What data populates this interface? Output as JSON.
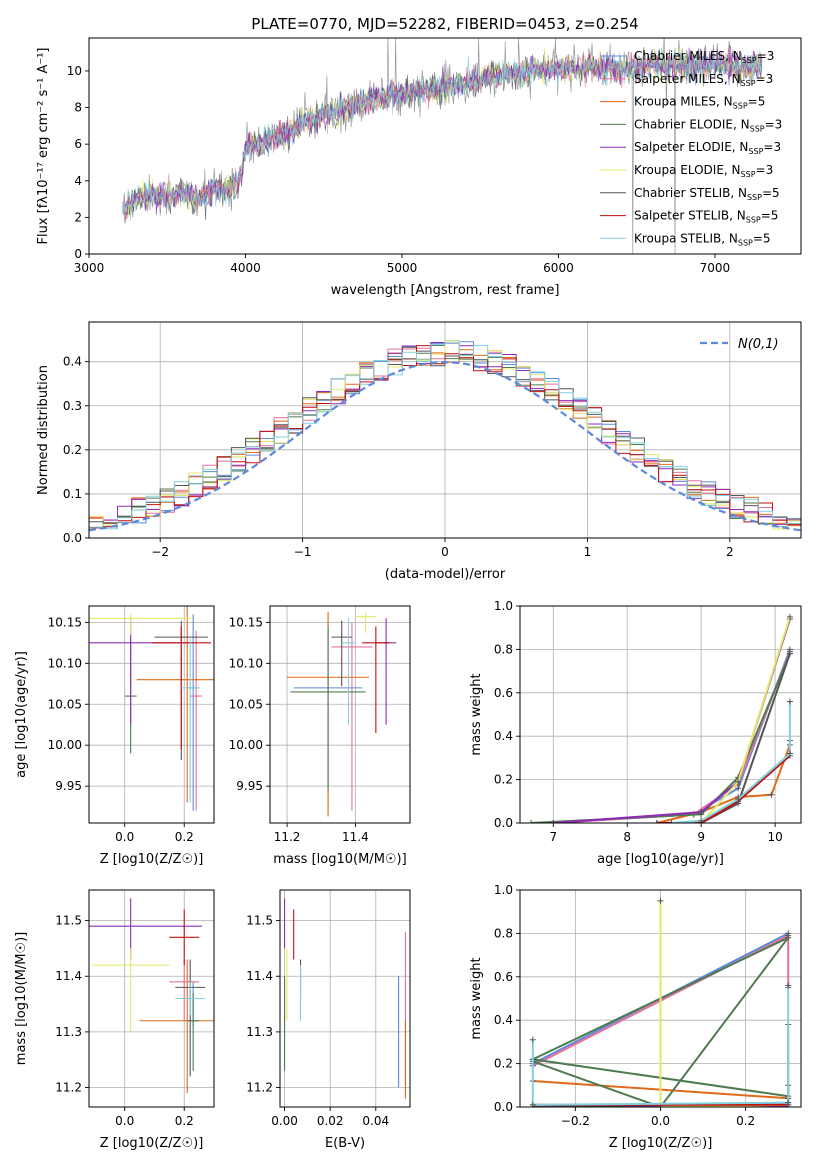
{
  "figure": {
    "title": "PLATE=0770, MJD=52282, FIBERID=0453, z=0.254"
  },
  "colors": {
    "series": [
      "#5b8ad9",
      "#e8709c",
      "#e06a1a",
      "#507a50",
      "#8e2bb8",
      "#e4e866",
      "#555555",
      "#c01010",
      "#80d0e0"
    ],
    "gauss": "#5b8ad9",
    "grid": "#b0b0b0",
    "spectrum_grey": "#808080"
  },
  "legend_series": [
    {
      "name": "Chabrier MILES",
      "n": "3"
    },
    {
      "name": "Salpeter MILES",
      "n": "3"
    },
    {
      "name": "Kroupa MILES",
      "n": "5"
    },
    {
      "name": "Chabrier ELODIE",
      "n": "3"
    },
    {
      "name": "Salpeter ELODIE",
      "n": "3"
    },
    {
      "name": "Kroupa ELODIE",
      "n": "3"
    },
    {
      "name": "Chabrier STELIB",
      "n": "5"
    },
    {
      "name": "Salpeter STELIB",
      "n": "5"
    },
    {
      "name": "Kroupa STELIB",
      "n": "5"
    }
  ],
  "chart_data": [
    {
      "type": "line",
      "panel": "spectrum",
      "xlabel": "wavelength [Angstrom, rest frame]",
      "ylabel": "Flux [f_λ 10^-17 erg cm^-2 s^-1 A^-1]",
      "xlim": [
        3000,
        7550
      ],
      "ylim": [
        0,
        11.8
      ],
      "xticks": [
        3000,
        4000,
        5000,
        6000,
        7000
      ],
      "yticks": [
        0,
        2,
        4,
        6,
        8,
        10
      ],
      "grid": false,
      "legend": "right",
      "continuum": {
        "x": [
          3215,
          3300,
          3400,
          3500,
          3600,
          3700,
          3800,
          3900,
          3960,
          4000,
          4100,
          4200,
          4300,
          4400,
          4500,
          4600,
          4700,
          4800,
          4900,
          5000,
          5100,
          5200,
          5400,
          5600,
          5800,
          6000,
          6200,
          6400,
          6600,
          6800,
          7000,
          7200,
          7300
        ],
        "y": [
          2.5,
          3.0,
          3.3,
          3.1,
          3.4,
          3.0,
          3.4,
          3.6,
          4.0,
          5.8,
          6.0,
          6.4,
          6.8,
          7.3,
          7.6,
          7.9,
          8.1,
          8.4,
          8.6,
          8.8,
          8.9,
          9.0,
          9.3,
          9.7,
          10.0,
          10.1,
          10.2,
          10.1,
          10.4,
          10.2,
          10.4,
          10.2,
          10.3
        ]
      },
      "legend_layout": "n_ssp"
    },
    {
      "type": "step-histogram",
      "panel": "residuals",
      "xlabel": "(data-model)/error",
      "ylabel": "Normed distribution",
      "xlim": [
        -2.5,
        2.5
      ],
      "ylim": [
        0,
        0.49
      ],
      "xticks": [
        -2,
        -1,
        0,
        1,
        2
      ],
      "yticks": [
        0,
        0.1,
        0.2,
        0.3,
        0.4
      ],
      "grid": true,
      "legend": "top-right",
      "gauss_label": "N(0,1)",
      "bin_width": 0.1,
      "bins_start": -2.5
    },
    {
      "type": "errorbar",
      "panel": "age-vs-Z",
      "xlabel": "Z [log10(Z/Z☉)]",
      "ylabel": "age [log10(age/yr)]",
      "xlim": [
        -0.12,
        0.3
      ],
      "ylim": [
        9.905,
        10.17
      ],
      "xticks": [
        0.0,
        0.2
      ],
      "yticks": [
        9.95,
        10.0,
        10.05,
        10.1,
        10.15
      ],
      "grid": true,
      "points": [
        {
          "x": 0.23,
          "y": 10.07,
          "xerr": 0.02,
          "yerr": [
            0.15,
            0.09
          ]
        },
        {
          "x": 0.24,
          "y": 10.06,
          "xerr": 0.02,
          "yerr": [
            0.14,
            0.08
          ]
        },
        {
          "x": 0.21,
          "y": 10.08,
          "xerr": 0.17,
          "yerr": [
            0.15,
            0.1
          ]
        },
        {
          "x": 0.02,
          "y": 10.06,
          "xerr": 0.02,
          "yerr": [
            0.07,
            0.07
          ]
        },
        {
          "x": 0.02,
          "y": 10.125,
          "xerr": 0.2,
          "yerr": [
            0.1,
            0.03
          ]
        },
        {
          "x": 0.02,
          "y": 10.155,
          "xerr": 0.2,
          "yerr": [
            0.02,
            0.005
          ]
        },
        {
          "x": 0.19,
          "y": 10.132,
          "xerr": 0.09,
          "yerr": [
            0.15,
            0.02
          ]
        },
        {
          "x": 0.19,
          "y": 10.125,
          "xerr": 0.1,
          "yerr": [
            0.13,
            0.02
          ]
        },
        {
          "x": 0.22,
          "y": 10.07,
          "xerr": 0.03,
          "yerr": [
            0.14,
            0.06
          ]
        }
      ]
    },
    {
      "type": "errorbar",
      "panel": "age-vs-mass",
      "xlabel": "mass [log10(M/M☉)]",
      "xlim": [
        11.15,
        11.56
      ],
      "ylim": [
        9.905,
        10.17
      ],
      "xticks": [
        11.2,
        11.4
      ],
      "yticks": [
        9.95,
        10.0,
        10.05,
        10.1,
        10.15
      ],
      "grid": true,
      "points": [
        {
          "x": 11.32,
          "y": 10.07,
          "xerr": 0.1,
          "yerr": [
            0.15,
            0.09
          ]
        },
        {
          "x": 11.39,
          "y": 10.12,
          "xerr": 0.06,
          "yerr": [
            0.2,
            0.03
          ]
        },
        {
          "x": 11.32,
          "y": 10.083,
          "xerr": 0.12,
          "yerr": [
            0.17,
            0.08
          ]
        },
        {
          "x": 11.32,
          "y": 10.065,
          "xerr": 0.11,
          "yerr": [
            0.12,
            0.08
          ]
        },
        {
          "x": 11.49,
          "y": 10.125,
          "xerr": 0.03,
          "yerr": [
            0.1,
            0.03
          ]
        },
        {
          "x": 11.43,
          "y": 10.157,
          "xerr": 0.03,
          "yerr": [
            0.02,
            0.005
          ]
        },
        {
          "x": 11.36,
          "y": 10.132,
          "xerr": 0.03,
          "yerr": [
            0.06,
            0.02
          ]
        },
        {
          "x": 11.46,
          "y": 10.125,
          "xerr": 0.04,
          "yerr": [
            0.11,
            0.02
          ]
        },
        {
          "x": 11.38,
          "y": 10.125,
          "xerr": 0.02,
          "yerr": [
            0.1,
            0.03
          ]
        }
      ]
    },
    {
      "type": "line",
      "panel": "massweight-vs-age",
      "xlabel": "age  [log10(age/yr)]",
      "ylabel": "mass weight",
      "xlim": [
        6.55,
        10.35
      ],
      "ylim": [
        0,
        1.0
      ],
      "xticks": [
        7,
        8,
        9,
        10
      ],
      "yticks": [
        0.0,
        0.2,
        0.4,
        0.6,
        0.8,
        1.0
      ],
      "grid": true,
      "series": [
        {
          "x": [
            7.0,
            8.9,
            9.5,
            10.2
          ],
          "y": [
            0.0,
            0.04,
            0.16,
            0.8
          ]
        },
        {
          "x": [
            7.0,
            8.9,
            9.5,
            10.2
          ],
          "y": [
            0.0,
            0.04,
            0.18,
            0.79
          ]
        },
        {
          "x": [
            8.4,
            9.0,
            9.5,
            9.95,
            10.2,
            10.2
          ],
          "y": [
            0.0,
            0.05,
            0.12,
            0.13,
            0.36,
            0.38
          ]
        },
        {
          "x": [
            6.7,
            9.0,
            9.5,
            10.2
          ],
          "y": [
            0.0,
            0.04,
            0.21,
            0.78
          ]
        },
        {
          "x": [
            7.0,
            9.0,
            9.5,
            10.2
          ],
          "y": [
            0.0,
            0.05,
            0.19,
            0.94
          ]
        },
        {
          "x": [
            9.0,
            9.5,
            10.2
          ],
          "y": [
            0.0,
            0.19,
            0.95
          ]
        },
        {
          "x": [
            8.4,
            9.0,
            9.5,
            10.2
          ],
          "y": [
            0.0,
            0.0,
            0.09,
            0.78
          ]
        },
        {
          "x": [
            8.4,
            9.0,
            9.5,
            10.2
          ],
          "y": [
            0.0,
            0.0,
            0.1,
            0.31
          ]
        },
        {
          "x": [
            8.6,
            9.0,
            9.5,
            10.2,
            10.2
          ],
          "y": [
            0.0,
            0.01,
            0.11,
            0.32,
            0.56
          ]
        }
      ]
    },
    {
      "type": "errorbar",
      "panel": "mass-vs-Z",
      "xlabel": "Z [log10(Z/Z☉)]",
      "ylabel": "mass [log10(M/M☉)]",
      "xlim": [
        -0.12,
        0.3
      ],
      "ylim": [
        11.165,
        11.555
      ],
      "xticks": [
        0.0,
        0.2
      ],
      "yticks": [
        11.2,
        11.3,
        11.4,
        11.5
      ],
      "grid": true,
      "points": [
        {
          "x": 0.23,
          "y": 11.36,
          "xerr": 0.04,
          "yerr": [
            0.05,
            0.03
          ]
        },
        {
          "x": 0.2,
          "y": 11.39,
          "xerr": 0.05,
          "yerr": [
            0.07,
            0.04
          ]
        },
        {
          "x": 0.21,
          "y": 11.32,
          "xerr": 0.16,
          "yerr": [
            0.13,
            0.11
          ]
        },
        {
          "x": 0.23,
          "y": 11.32,
          "xerr": 0.02,
          "yerr": [
            0.09,
            0.05
          ]
        },
        {
          "x": 0.02,
          "y": 11.49,
          "xerr": 0.24,
          "yerr": [
            0.06,
            0.05
          ]
        },
        {
          "x": 0.02,
          "y": 11.42,
          "xerr": 0.13,
          "yerr": [
            0.12,
            0.03
          ]
        },
        {
          "x": 0.22,
          "y": 11.38,
          "xerr": 0.05,
          "yerr": [
            0.16,
            0.05
          ]
        },
        {
          "x": 0.2,
          "y": 11.47,
          "xerr": 0.05,
          "yerr": [
            0.05,
            0.05
          ]
        },
        {
          "x": 0.22,
          "y": 11.36,
          "xerr": 0.05,
          "yerr": [
            0.03,
            0.03
          ]
        }
      ]
    },
    {
      "type": "errorbar",
      "panel": "mass-vs-EBV",
      "xlabel": "E(B-V)",
      "xlim": [
        -0.002,
        0.055
      ],
      "ylim": [
        11.165,
        11.555
      ],
      "xticks": [
        0.0,
        0.02,
        0.04
      ],
      "yticks": [
        11.2,
        11.3,
        11.4,
        11.5
      ],
      "grid": true,
      "points": [
        {
          "x": 0.05,
          "y": 11.3,
          "xerr": 0,
          "yerr": [
            0.1,
            0.1
          ]
        },
        {
          "x": 0.053,
          "y": 11.38,
          "xerr": 0,
          "yerr": [
            0.19,
            0.1
          ]
        },
        {
          "x": 0.053,
          "y": 11.26,
          "xerr": 0,
          "yerr": [
            0.08,
            0.06
          ]
        },
        {
          "x": 0.0,
          "y": 11.3,
          "xerr": 0,
          "yerr": [
            0.07,
            0.1
          ]
        },
        {
          "x": 0.0,
          "y": 11.49,
          "xerr": 0,
          "yerr": [
            0.04,
            0.05
          ]
        },
        {
          "x": 0.001,
          "y": 11.42,
          "xerr": 0,
          "yerr": [
            0.1,
            0.03
          ]
        },
        {
          "x": 0.007,
          "y": 11.41,
          "xerr": 0,
          "yerr": [
            0.05,
            0.02
          ]
        },
        {
          "x": 0.004,
          "y": 11.48,
          "xerr": 0,
          "yerr": [
            0.05,
            0.04
          ]
        },
        {
          "x": 0.007,
          "y": 11.37,
          "xerr": 0,
          "yerr": [
            0.05,
            0.05
          ]
        }
      ]
    },
    {
      "type": "line",
      "panel": "massweight-vs-Z",
      "xlabel": "Z [log10(Z/Z☉)]",
      "ylabel": "mass weight",
      "xlim": [
        -0.33,
        0.33
      ],
      "ylim": [
        0,
        1.0
      ],
      "xticks": [
        -0.2,
        0.0,
        0.2
      ],
      "yticks": [
        0.0,
        0.2,
        0.4,
        0.6,
        0.8,
        1.0
      ],
      "grid": true,
      "series": [
        {
          "x": [
            -0.3,
            0.3
          ],
          "y": [
            0.2,
            0.8
          ]
        },
        {
          "x": [
            -0.3,
            0.3,
            0.3
          ],
          "y": [
            0.19,
            0.79,
            0.55
          ]
        },
        {
          "x": [
            -0.3,
            0.3,
            0.3
          ],
          "y": [
            0.12,
            0.04,
            0.38
          ]
        },
        {
          "x": [
            -0.3,
            0.0,
            0.3,
            -0.3,
            0.3
          ],
          "y": [
            0.21,
            0.0,
            0.78,
            0.22,
            0.05
          ]
        },
        {
          "x": [
            -0.3,
            0.3
          ],
          "y": [
            0.0,
            0.0
          ]
        },
        {
          "x": [
            0.0,
            0.0,
            0.3
          ],
          "y": [
            0.95,
            0.0,
            0.01
          ]
        },
        {
          "x": [
            -0.3,
            0.3,
            0.3
          ],
          "y": [
            0.0,
            0.02,
            0.1
          ]
        },
        {
          "x": [
            -0.3,
            0.3
          ],
          "y": [
            0.01,
            0.01
          ]
        },
        {
          "x": [
            -0.3,
            -0.3,
            0.3,
            0.3
          ],
          "y": [
            0.31,
            0.01,
            0.02,
            0.56
          ]
        }
      ]
    }
  ]
}
